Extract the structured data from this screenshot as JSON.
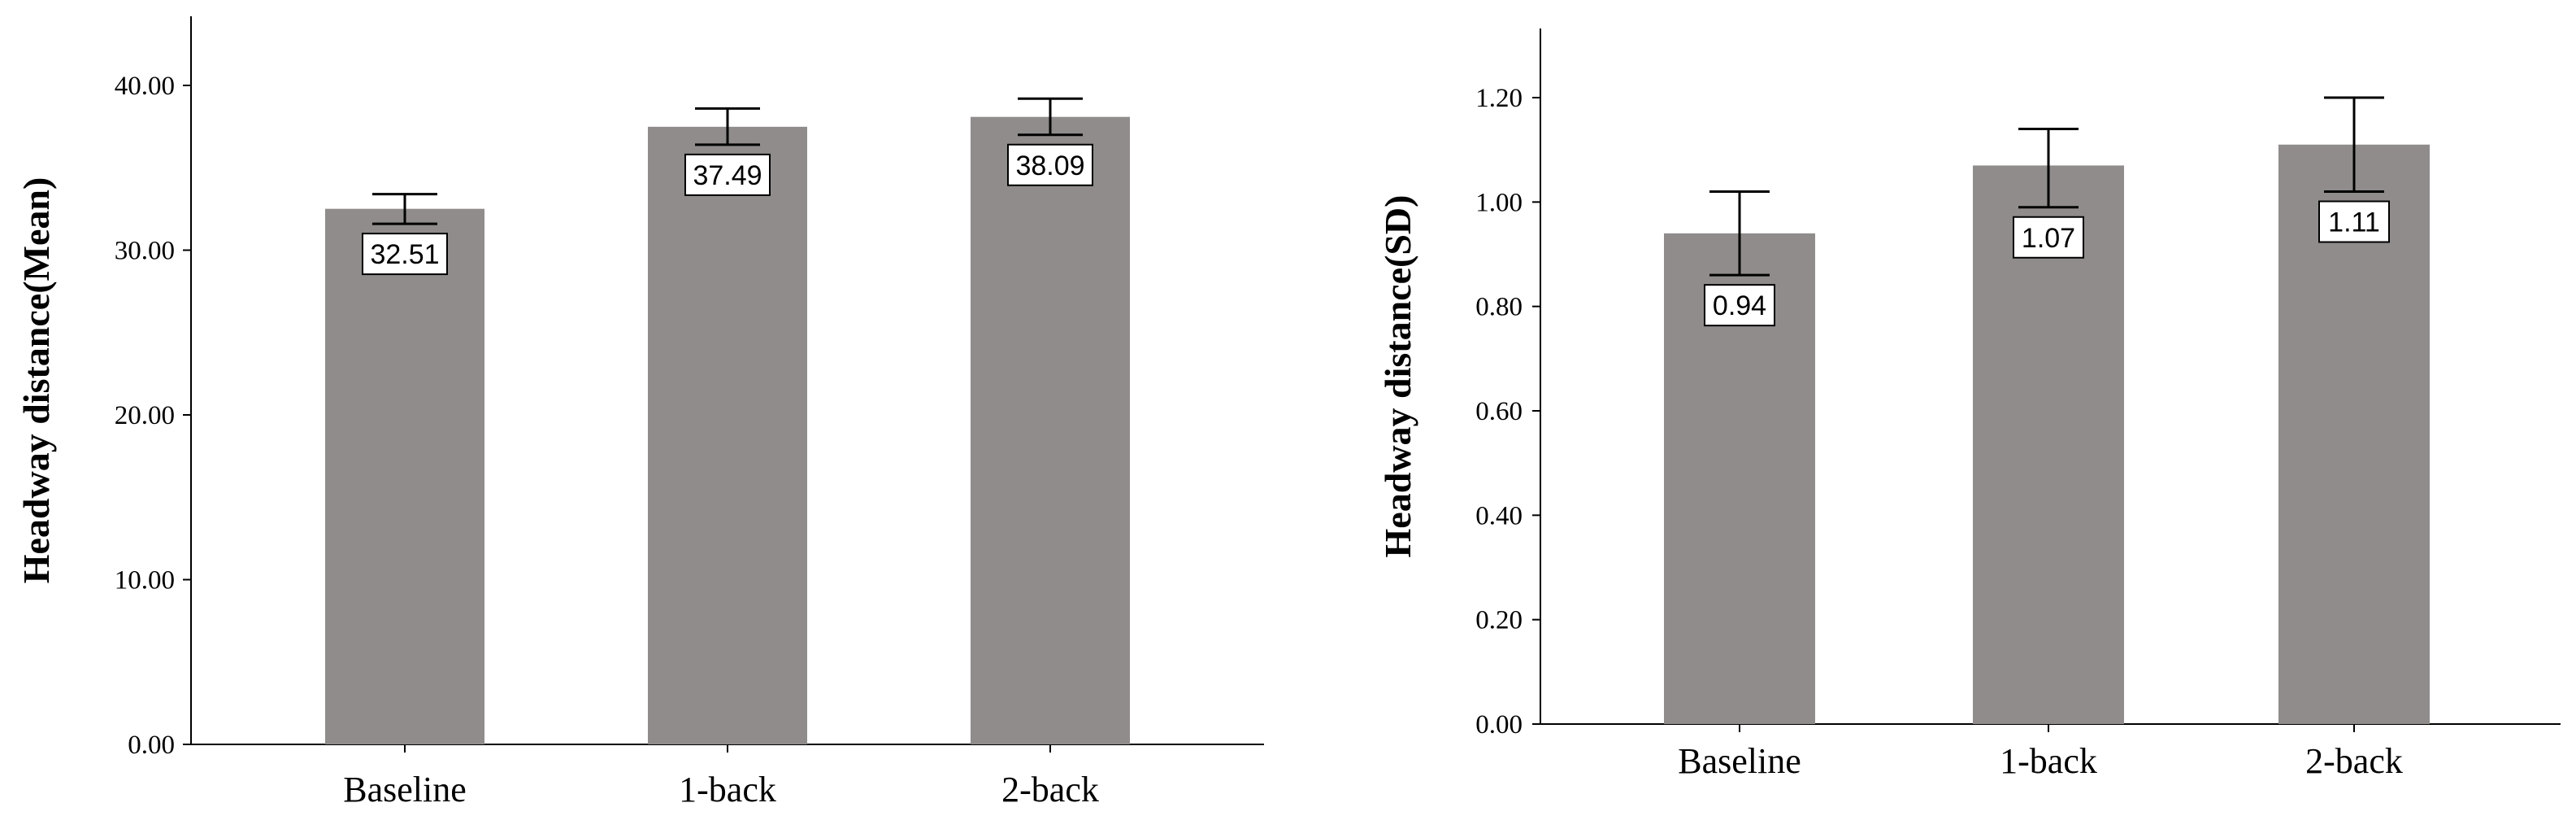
{
  "chart_data": [
    {
      "type": "bar",
      "categories": [
        "Baseline",
        "1-back",
        "2-back"
      ],
      "values": [
        32.51,
        37.49,
        38.09
      ],
      "value_labels": [
        "32.51",
        "37.49",
        "38.09"
      ],
      "error_bars": [
        [
          31.6,
          33.4
        ],
        [
          36.4,
          38.6
        ],
        [
          37.0,
          39.2
        ]
      ],
      "ylabel": "Headway distance(Mean)",
      "xlabel": "",
      "ylim": [
        0,
        40
      ],
      "yticks": [
        0,
        10,
        20,
        30,
        40
      ],
      "ytick_labels": [
        "0.00",
        "10.00",
        "20.00",
        "30.00",
        "40.00"
      ],
      "bar_color": "#8f8c8b",
      "grid": false,
      "legend": "none"
    },
    {
      "type": "bar",
      "categories": [
        "Baseline",
        "1-back",
        "2-back"
      ],
      "values": [
        0.94,
        1.07,
        1.11
      ],
      "value_labels": [
        "0.94",
        "1.07",
        "1.11"
      ],
      "error_bars": [
        [
          0.86,
          1.02
        ],
        [
          0.99,
          1.14
        ],
        [
          1.02,
          1.2
        ]
      ],
      "ylabel": "Headway distance(SD)",
      "xlabel": "",
      "ylim": [
        0,
        1.2
      ],
      "yticks": [
        0,
        0.2,
        0.4,
        0.6,
        0.8,
        1.0,
        1.2
      ],
      "ytick_labels": [
        "0.00",
        "0.20",
        "0.40",
        "0.60",
        "0.80",
        "1.00",
        "1.20"
      ],
      "bar_color": "#8f8c8b",
      "grid": false,
      "legend": "none"
    }
  ]
}
